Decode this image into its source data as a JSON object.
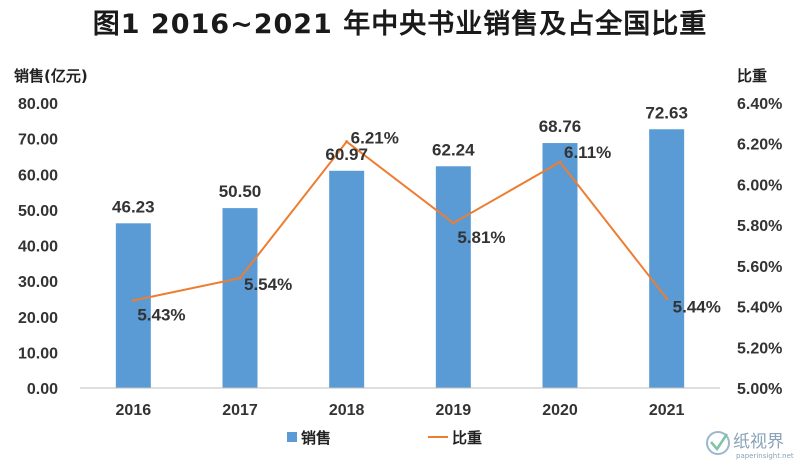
{
  "chart_data": {
    "type": "bar",
    "title": "图1  2016~2021 年中央书业销售及占全国比重",
    "categories": [
      "2016",
      "2017",
      "2018",
      "2019",
      "2020",
      "2021"
    ],
    "series": [
      {
        "name": "销售",
        "type": "bar",
        "axis": "left",
        "values": [
          46.23,
          50.5,
          60.97,
          62.24,
          68.76,
          72.63
        ],
        "labels": [
          "46.23",
          "50.50",
          "60.97",
          "62.24",
          "68.76",
          "72.63"
        ],
        "color": "#5b9bd5"
      },
      {
        "name": "比重",
        "type": "line",
        "axis": "right",
        "values": [
          5.43,
          5.54,
          6.21,
          5.81,
          6.11,
          5.44
        ],
        "labels": [
          "5.43%",
          "5.54%",
          "6.21%",
          "5.81%",
          "6.11%",
          "5.44%"
        ],
        "color": "#ed7d31"
      }
    ],
    "ylabel_left": "销售(亿元)",
    "ylabel_right": "比重",
    "ylim_left": [
      0,
      80
    ],
    "ylim_right": [
      5.0,
      6.4
    ],
    "yticks_left": [
      "0.00",
      "10.00",
      "20.00",
      "30.00",
      "40.00",
      "50.00",
      "60.00",
      "70.00",
      "80.00"
    ],
    "yticks_right": [
      "5.00%",
      "5.20%",
      "5.40%",
      "5.60%",
      "5.80%",
      "6.00%",
      "6.20%",
      "6.40%"
    ],
    "grid": false,
    "legend_position": "bottom"
  },
  "watermark": {
    "text": "纸视界",
    "url": "paperinsight.net"
  }
}
